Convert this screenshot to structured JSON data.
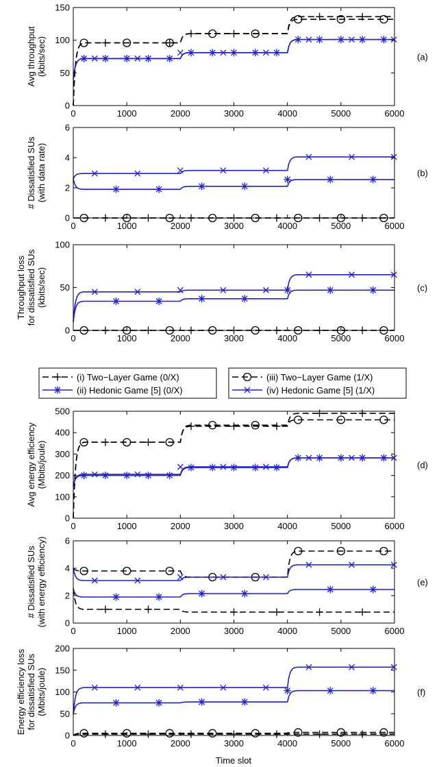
{
  "colors": {
    "black": "#000000",
    "blue": "#1f1fd6"
  },
  "legend": [
    {
      "label": "(i) Two−Layer Game (0/X)",
      "color": "#000000",
      "dash": true,
      "marker": "plus"
    },
    {
      "label": "(ii) Hedonic Game [5] (0/X)",
      "color": "#1f1fd6",
      "dash": false,
      "marker": "star"
    },
    {
      "label": "(iii) Two−Layer Game (1/X)",
      "color": "#000000",
      "dash": true,
      "marker": "circle"
    },
    {
      "label": "(iv) Hedonic Game [5] (1/X)",
      "color": "#1f1fd6",
      "dash": false,
      "marker": "x"
    }
  ],
  "xlabel": "Time slot",
  "chart_data": [
    {
      "type": "line",
      "tag": "(a)",
      "ylabel": [
        "Avg throughput",
        "(kbits/sec)"
      ],
      "xlim": [
        0,
        6000
      ],
      "ylim": [
        0,
        150
      ],
      "xticks": [
        0,
        1000,
        2000,
        3000,
        4000,
        5000,
        6000
      ],
      "yticks": [
        0,
        50,
        100,
        150
      ],
      "series": [
        {
          "key": "i",
          "levels": [
            0,
            96,
            110,
            136
          ],
          "markers": [
            600,
            1800,
            2200,
            3000,
            4600,
            5400
          ]
        },
        {
          "key": "ii",
          "levels": [
            40,
            72,
            81,
            101
          ],
          "markers": [
            200,
            600,
            1000,
            1400,
            1800,
            2200,
            2600,
            3000,
            3400,
            3800,
            4200,
            4600,
            5000,
            5400,
            5800
          ]
        },
        {
          "key": "iii",
          "levels": [
            0,
            96,
            110,
            132
          ],
          "markers": [
            200,
            1000,
            1800,
            2600,
            3400,
            4200,
            5000,
            5800
          ]
        },
        {
          "key": "iv",
          "levels": [
            40,
            72,
            81,
            101
          ],
          "markers": [
            400,
            1200,
            2000,
            2800,
            3600,
            4400,
            5200,
            6000
          ]
        }
      ]
    },
    {
      "type": "line",
      "tag": "(b)",
      "ylabel": [
        "# Dissatisfied SUs",
        "(with data rate)"
      ],
      "xlim": [
        0,
        6000
      ],
      "ylim": [
        0,
        6
      ],
      "xticks": [
        0,
        1000,
        2000,
        3000,
        4000,
        5000,
        6000
      ],
      "yticks": [
        0,
        2,
        4,
        6
      ],
      "series": [
        {
          "key": "i",
          "levels": [
            0,
            0,
            0,
            0
          ],
          "markers": [
            600,
            1400,
            2200,
            3000,
            3800,
            4600,
            5400
          ]
        },
        {
          "key": "ii",
          "levels": [
            2.6,
            1.9,
            2.1,
            2.55
          ],
          "markers": [
            800,
            1600,
            2400,
            3200,
            4000,
            4800,
            5600
          ]
        },
        {
          "key": "iii",
          "levels": [
            0,
            0,
            0,
            0
          ],
          "markers": [
            200,
            1000,
            1800,
            2600,
            3400,
            4200,
            5000,
            5800
          ]
        },
        {
          "key": "iv",
          "levels": [
            2.6,
            2.95,
            3.15,
            4.05
          ],
          "markers": [
            400,
            1200,
            2000,
            2800,
            3600,
            4400,
            5200,
            6000
          ]
        }
      ]
    },
    {
      "type": "line",
      "tag": "(c)",
      "ylabel": [
        "Throughput loss",
        "for dissatisfied SUs",
        "(kbits/sec)"
      ],
      "xlim": [
        0,
        6000
      ],
      "ylim": [
        0,
        100
      ],
      "xticks": [
        0,
        1000,
        2000,
        3000,
        4000,
        5000,
        6000
      ],
      "yticks": [
        0,
        50,
        100
      ],
      "series": [
        {
          "key": "i",
          "levels": [
            0,
            0,
            0,
            0
          ],
          "markers": [
            600,
            1400,
            2200,
            3000,
            3800,
            4600,
            5400
          ]
        },
        {
          "key": "ii",
          "levels": [
            10,
            34,
            37,
            47
          ],
          "markers": [
            800,
            1600,
            2400,
            3200,
            4000,
            4800,
            5600
          ]
        },
        {
          "key": "iii",
          "levels": [
            0,
            0,
            0,
            0
          ],
          "markers": [
            200,
            1000,
            1800,
            2600,
            3400,
            4200,
            5000,
            5800
          ]
        },
        {
          "key": "iv",
          "levels": [
            10,
            45,
            47,
            65
          ],
          "markers": [
            400,
            1200,
            2000,
            2800,
            3600,
            4400,
            5200,
            6000
          ]
        }
      ]
    },
    {
      "type": "line",
      "tag": "(d)",
      "ylabel": [
        "Avg energy efficiency",
        "(Mbits/joule)"
      ],
      "xlim": [
        0,
        6000
      ],
      "ylim": [
        0,
        500
      ],
      "xticks": [
        0,
        1000,
        2000,
        3000,
        4000,
        5000,
        6000
      ],
      "yticks": [
        0,
        100,
        200,
        300,
        400,
        500
      ],
      "series": [
        {
          "key": "i",
          "levels": [
            0,
            355,
            430,
            490
          ],
          "markers": [
            600,
            1400,
            2200,
            3000,
            3800,
            4600,
            5400
          ]
        },
        {
          "key": "ii",
          "levels": [
            150,
            200,
            237,
            282
          ],
          "markers": [
            200,
            600,
            1000,
            1400,
            1800,
            2200,
            2600,
            3000,
            3400,
            3800,
            4200,
            4600,
            5000,
            5400,
            5800
          ]
        },
        {
          "key": "iii",
          "levels": [
            0,
            355,
            435,
            460
          ],
          "markers": [
            200,
            1000,
            1800,
            2600,
            3400,
            4200,
            5000,
            5800
          ]
        },
        {
          "key": "iv",
          "levels": [
            150,
            205,
            240,
            282
          ],
          "markers": [
            400,
            1200,
            2000,
            2800,
            3600,
            4400,
            5200,
            6000
          ]
        }
      ]
    },
    {
      "type": "line",
      "tag": "(e)",
      "ylabel": [
        "# Dissatisfied SUs",
        "(with energy efficiency)"
      ],
      "xlim": [
        0,
        6000
      ],
      "ylim": [
        0,
        6
      ],
      "xticks": [
        0,
        1000,
        2000,
        3000,
        4000,
        5000,
        6000
      ],
      "yticks": [
        0,
        2,
        4,
        6
      ],
      "series": [
        {
          "key": "i",
          "levels": [
            2.5,
            1.0,
            0.8,
            0.8
          ],
          "markers": [
            600,
            1400,
            3000,
            3800,
            4600,
            5400
          ]
        },
        {
          "key": "ii",
          "levels": [
            2.5,
            1.9,
            2.15,
            2.45
          ],
          "markers": [
            800,
            1600,
            2400,
            3200,
            4800,
            5600
          ]
        },
        {
          "key": "iii",
          "levels": [
            4.0,
            3.8,
            3.35,
            5.25
          ],
          "markers": [
            200,
            1000,
            1800,
            2600,
            3400,
            4200,
            5000,
            5800
          ]
        },
        {
          "key": "iv",
          "levels": [
            4.0,
            3.1,
            3.35,
            4.25
          ],
          "markers": [
            400,
            1200,
            2000,
            2800,
            3600,
            4400,
            5200,
            6000
          ]
        }
      ]
    },
    {
      "type": "line",
      "tag": "(f)",
      "ylabel": [
        "Energy efficiency loss",
        "for dissatisfied SUs",
        "(Mbits/joule)"
      ],
      "xlim": [
        0,
        6000
      ],
      "ylim": [
        0,
        200
      ],
      "xticks": [
        0,
        1000,
        2000,
        3000,
        4000,
        5000,
        6000
      ],
      "yticks": [
        0,
        50,
        100,
        150,
        200
      ],
      "series": [
        {
          "key": "i",
          "levels": [
            0,
            3,
            3,
            3
          ],
          "markers": [
            600,
            1400,
            2200,
            3000,
            3800,
            4600,
            5400
          ]
        },
        {
          "key": "ii",
          "levels": [
            50,
            75,
            77,
            103
          ],
          "markers": [
            800,
            1600,
            2400,
            3200,
            4000,
            4800,
            5600
          ]
        },
        {
          "key": "iii",
          "levels": [
            0,
            5,
            5,
            7
          ],
          "markers": [
            200,
            1000,
            1800,
            2600,
            3400,
            4200,
            5000,
            5800
          ]
        },
        {
          "key": "iv",
          "levels": [
            50,
            110,
            110,
            157
          ],
          "markers": [
            400,
            1200,
            2000,
            2800,
            3600,
            4400,
            5200,
            6000
          ]
        }
      ]
    }
  ]
}
